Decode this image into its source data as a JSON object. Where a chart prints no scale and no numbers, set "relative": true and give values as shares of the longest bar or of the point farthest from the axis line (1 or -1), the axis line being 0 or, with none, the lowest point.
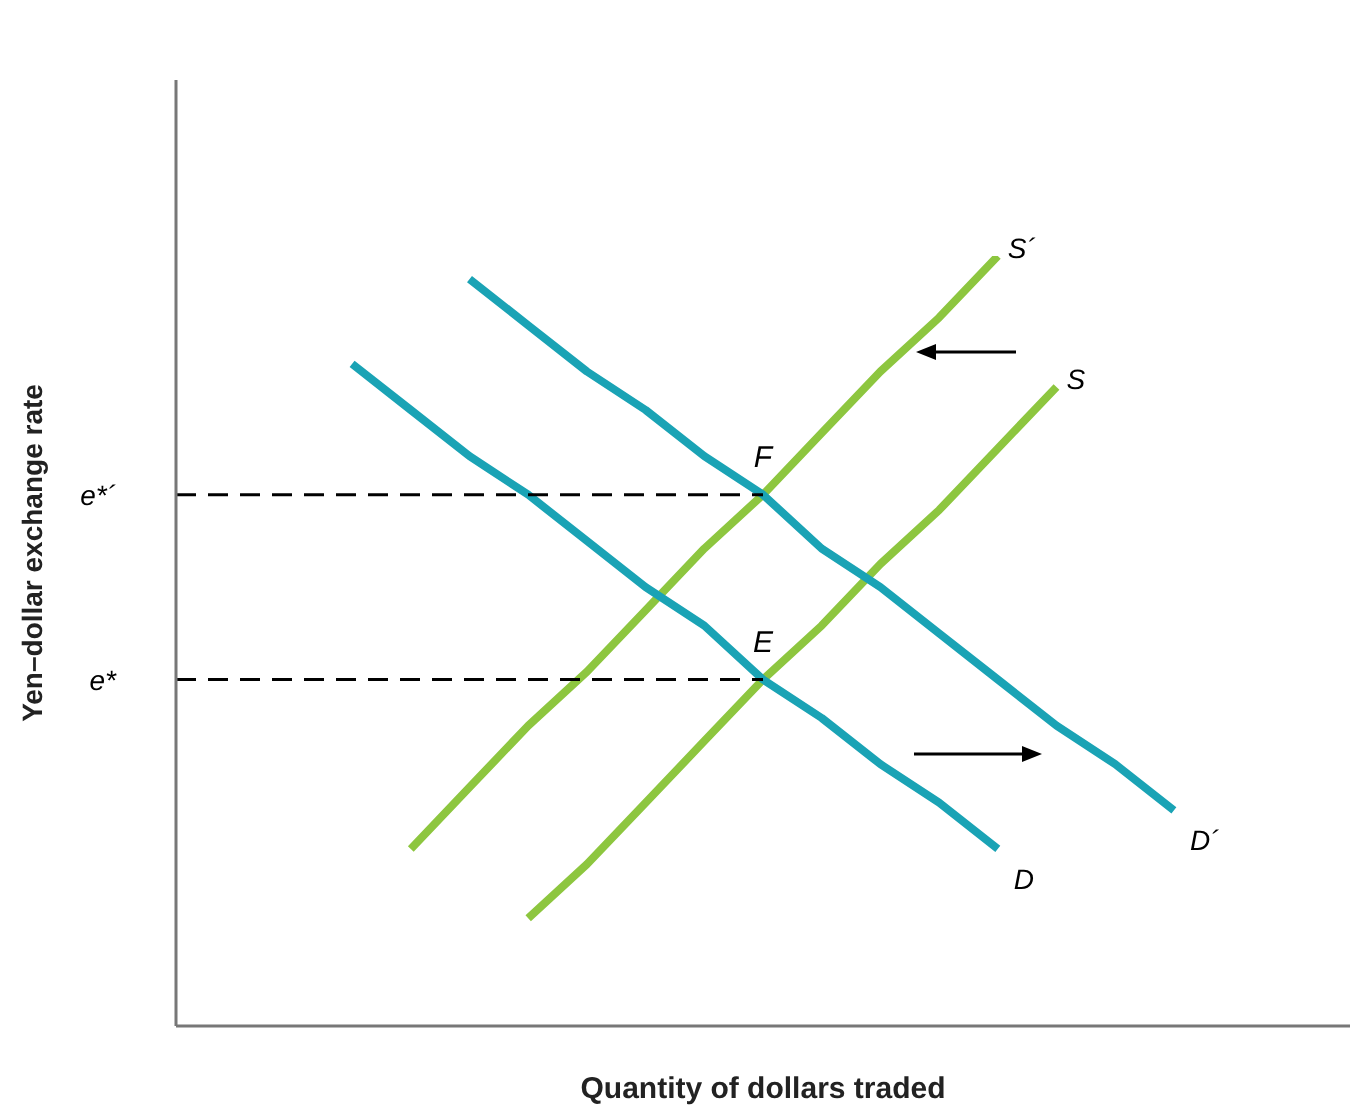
{
  "chart_data": {
    "type": "line",
    "relative": true,
    "xlabel": "Quantity of dollars traded",
    "ylabel": "Yen–dollar exchange rate",
    "categories": [
      null,
      null,
      null,
      null,
      null,
      null,
      null,
      null,
      null,
      null,
      null,
      null,
      null,
      null,
      null,
      null,
      null,
      null,
      null,
      null,
      null
    ],
    "series": [
      {
        "name": "S´",
        "color": "#8dc63f",
        "values": [
          null,
          null,
          null,
          null,
          0.23,
          0.31,
          0.39,
          0.46,
          0.54,
          0.62,
          0.69,
          0.77,
          0.85,
          0.92,
          1,
          null,
          null,
          null,
          null,
          null,
          null
        ]
      },
      {
        "name": "S",
        "color": "#8dc63f",
        "values": [
          null,
          null,
          null,
          null,
          null,
          null,
          0.14,
          0.21,
          0.29,
          0.37,
          0.45,
          0.52,
          0.6,
          0.67,
          0.75,
          0.83,
          null,
          null,
          null,
          null,
          null
        ]
      },
      {
        "name": "D",
        "color": "#1aa3b5",
        "values": [
          null,
          null,
          null,
          0.86,
          0.8,
          0.74,
          0.69,
          0.63,
          0.57,
          0.52,
          0.45,
          0.4,
          0.34,
          0.29,
          0.23,
          null,
          null,
          null,
          null,
          null,
          null
        ]
      },
      {
        "name": "D´",
        "color": "#1aa3b5",
        "values": [
          null,
          null,
          null,
          null,
          null,
          0.97,
          0.91,
          0.85,
          0.8,
          0.74,
          0.69,
          0.62,
          0.57,
          0.51,
          0.45,
          0.39,
          0.34,
          0.28,
          null,
          null,
          null
        ]
      },
      {
        "name": "e*´",
        "color": "#000000",
        "line_style": "dashed",
        "values": [
          0.69,
          0.69,
          0.69,
          0.69,
          0.69,
          0.69,
          0.69,
          0.69,
          0.69,
          0.69,
          0.69,
          null,
          null,
          null,
          null,
          null,
          null,
          null,
          null,
          null,
          null
        ]
      },
      {
        "name": "e*",
        "color": "#000000",
        "line_style": "dashed",
        "values": [
          0.45,
          0.45,
          0.45,
          0.45,
          0.45,
          0.45,
          0.45,
          0.45,
          0.45,
          0.45,
          0.45,
          null,
          null,
          null,
          null,
          null,
          null,
          null,
          null,
          null,
          null
        ]
      }
    ],
    "annotations": [
      {
        "text": "F",
        "y": 0.69
      },
      {
        "text": "E",
        "y": 0.45
      }
    ]
  }
}
